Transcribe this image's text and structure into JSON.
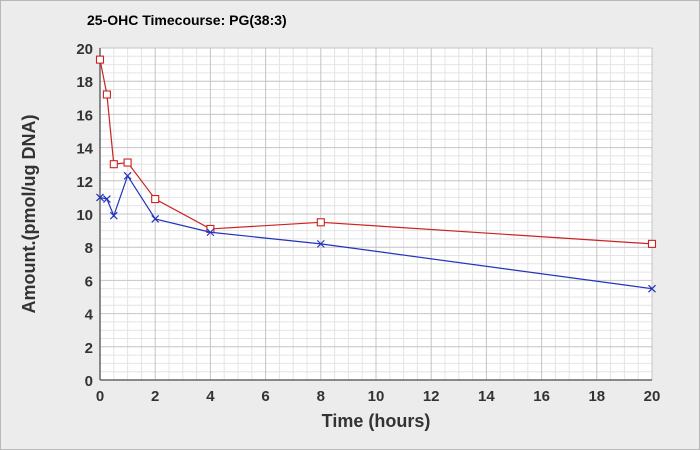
{
  "chart_data": {
    "type": "line",
    "title": "25-OHC Timecourse: PG(38:3)",
    "xlabel": "Time (hours)",
    "ylabel": "Amount.(pmol/ug DNA)",
    "xlim": [
      0,
      20
    ],
    "ylim": [
      0,
      20
    ],
    "x_ticks": [
      0,
      2,
      4,
      6,
      8,
      10,
      12,
      14,
      16,
      18,
      20
    ],
    "y_ticks": [
      0,
      2,
      4,
      6,
      8,
      10,
      12,
      14,
      16,
      18,
      20
    ],
    "grid": true,
    "legend": "none",
    "series": [
      {
        "color": "#cc2222",
        "marker": "square",
        "x": [
          0,
          0.25,
          0.5,
          1,
          2,
          4,
          8,
          20
        ],
        "y": [
          19.3,
          17.2,
          13.0,
          13.1,
          10.9,
          9.1,
          9.5,
          8.2
        ]
      },
      {
        "color": "#2233bb",
        "marker": "x",
        "x": [
          0,
          0.25,
          0.5,
          1,
          2,
          4,
          8,
          20
        ],
        "y": [
          11.0,
          10.9,
          9.9,
          12.3,
          9.7,
          8.9,
          8.2,
          5.5
        ]
      }
    ]
  }
}
